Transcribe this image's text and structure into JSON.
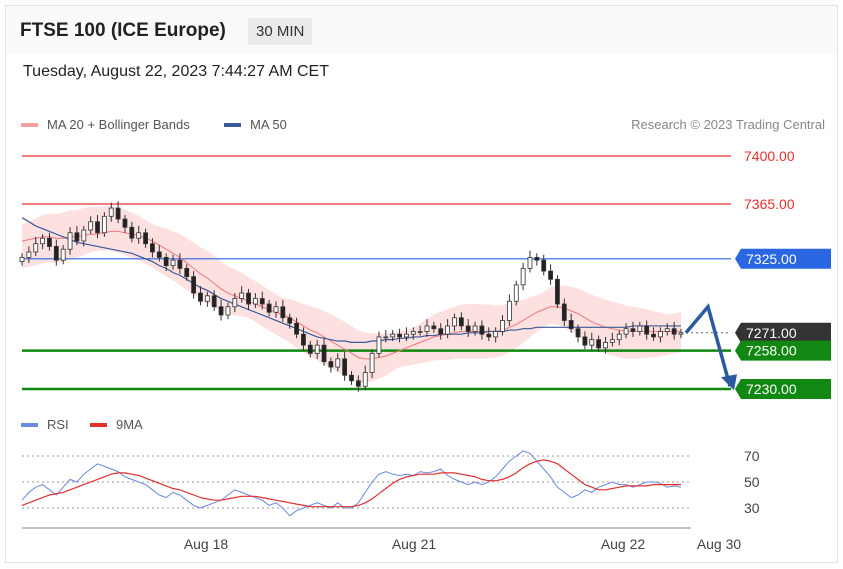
{
  "header": {
    "title": "FTSE 100 (ICE Europe)",
    "timeframe": "30 MIN"
  },
  "datetime": "Tuesday, August 22, 2023 7:44:27 AM CET",
  "legend": {
    "ma20": "MA 20 + Bollinger Bands",
    "ma50": "MA 50",
    "credit": "Research © 2023 Trading Central"
  },
  "rsi_legend": {
    "rsi": "RSI",
    "ma9": "9MA"
  },
  "colors": {
    "resistance": "#e8302a",
    "pivot": "#2a66e0",
    "support": "#118811",
    "price": "#333333",
    "ma20": "#f07878",
    "ma50": "#3a5a9a",
    "band": "#fde0e0",
    "rsi": "#6a8ae0",
    "rsi_ma": "#e03030",
    "arrow": "#2c5aa0"
  },
  "chart_data": [
    {
      "type": "candlestick",
      "title": "FTSE 100 (ICE Europe)",
      "timeframe": "30 MIN",
      "ylim": [
        7210,
        7420
      ],
      "x_ticks": [
        "Aug 18",
        "Aug 21",
        "Aug 22",
        "Aug 30"
      ],
      "levels": [
        {
          "value": 7400.0,
          "label": "7400.00",
          "kind": "resistance"
        },
        {
          "value": 7365.0,
          "label": "7365.00",
          "kind": "resistance"
        },
        {
          "value": 7325.0,
          "label": "7325.00",
          "kind": "pivot"
        },
        {
          "value": 7271.0,
          "label": "7271.00",
          "kind": "last"
        },
        {
          "value": 7258.0,
          "label": "7258.00",
          "kind": "support"
        },
        {
          "value": 7230.0,
          "label": "7230.00",
          "kind": "support"
        }
      ],
      "close": [
        7326,
        7330,
        7336,
        7340,
        7334,
        7324,
        7332,
        7344,
        7338,
        7346,
        7352,
        7344,
        7356,
        7362,
        7354,
        7348,
        7340,
        7344,
        7336,
        7330,
        7326,
        7320,
        7324,
        7318,
        7312,
        7300,
        7294,
        7298,
        7290,
        7284,
        7290,
        7296,
        7300,
        7292,
        7296,
        7292,
        7286,
        7290,
        7282,
        7278,
        7270,
        7262,
        7256,
        7262,
        7250,
        7246,
        7252,
        7240,
        7236,
        7232,
        7242,
        7256,
        7268,
        7268,
        7270,
        7268,
        7270,
        7272,
        7272,
        7276,
        7274,
        7270,
        7276,
        7282,
        7276,
        7272,
        7276,
        7270,
        7268,
        7272,
        7280,
        7294,
        7306,
        7318,
        7326,
        7324,
        7316,
        7310,
        7292,
        7280,
        7274,
        7268,
        7262,
        7266,
        7260,
        7264,
        7266,
        7270,
        7274,
        7272,
        7276,
        7270,
        7268,
        7272,
        7274,
        7270,
        7271
      ],
      "ma20": [
        7338,
        7339,
        7340,
        7341,
        7341,
        7340,
        7340,
        7341,
        7341,
        7342,
        7343,
        7343,
        7344,
        7345,
        7345,
        7344,
        7343,
        7342,
        7340,
        7338,
        7335,
        7332,
        7329,
        7326,
        7322,
        7318,
        7314,
        7311,
        7307,
        7303,
        7300,
        7298,
        7296,
        7294,
        7292,
        7290,
        7288,
        7286,
        7284,
        7282,
        7279,
        7276,
        7273,
        7271,
        7268,
        7265,
        7262,
        7259,
        7256,
        7253,
        7252,
        7252,
        7253,
        7254,
        7256,
        7258,
        7260,
        7262,
        7264,
        7266,
        7268,
        7269,
        7270,
        7271,
        7272,
        7272,
        7272,
        7272,
        7272,
        7272,
        7273,
        7275,
        7277,
        7280,
        7283,
        7286,
        7288,
        7290,
        7290,
        7289,
        7287,
        7285,
        7282,
        7279,
        7277,
        7275,
        7274,
        7273,
        7272,
        7272,
        7272,
        7272,
        7272,
        7272,
        7272,
        7272,
        7272
      ],
      "ma50": [
        7355,
        7352,
        7349,
        7347,
        7345,
        7343,
        7341,
        7339,
        7337,
        7336,
        7335,
        7334,
        7333,
        7332,
        7331,
        7330,
        7329,
        7327,
        7325,
        7323,
        7320,
        7318,
        7315,
        7313,
        7310,
        7307,
        7304,
        7302,
        7299,
        7296,
        7294,
        7292,
        7290,
        7288,
        7286,
        7284,
        7282,
        7280,
        7278,
        7276,
        7274,
        7272,
        7270,
        7268,
        7267,
        7266,
        7265,
        7265,
        7264,
        7264,
        7264,
        7265,
        7265,
        7266,
        7266,
        7267,
        7267,
        7268,
        7268,
        7269,
        7269,
        7270,
        7270,
        7270,
        7270,
        7271,
        7271,
        7271,
        7272,
        7272,
        7272,
        7273,
        7273,
        7274,
        7274,
        7275,
        7275,
        7275,
        7275,
        7275,
        7275,
        7275,
        7275,
        7275,
        7275,
        7275,
        7275,
        7275,
        7275,
        7276,
        7276,
        7276,
        7276,
        7276,
        7276,
        7276,
        7276
      ],
      "projection": [
        {
          "step": 0,
          "value": 7271
        },
        {
          "step": 1,
          "value": 7290
        },
        {
          "step": 2,
          "value": 7232
        }
      ]
    },
    {
      "type": "line",
      "title": "RSI",
      "ylim": [
        20,
        80
      ],
      "y_ticks": [
        70,
        50,
        30
      ],
      "series": [
        {
          "name": "RSI",
          "values": [
            36,
            42,
            46,
            48,
            44,
            40,
            46,
            52,
            50,
            56,
            60,
            64,
            62,
            60,
            58,
            54,
            52,
            50,
            48,
            44,
            40,
            38,
            42,
            40,
            36,
            32,
            30,
            32,
            34,
            36,
            40,
            44,
            42,
            40,
            38,
            36,
            32,
            34,
            30,
            24,
            28,
            30,
            32,
            34,
            32,
            30,
            34,
            30,
            30,
            34,
            42,
            50,
            56,
            58,
            56,
            55,
            56,
            55,
            58,
            57,
            58,
            60,
            55,
            52,
            50,
            48,
            50,
            48,
            50,
            54,
            60,
            66,
            70,
            74,
            72,
            66,
            60,
            54,
            46,
            42,
            38,
            40,
            44,
            42,
            46,
            48,
            50,
            48,
            48,
            46,
            48,
            50,
            50,
            49,
            46,
            47,
            46
          ]
        },
        {
          "name": "9MA",
          "values": [
            32,
            34,
            36,
            38,
            40,
            41,
            42,
            44,
            46,
            48,
            50,
            52,
            54,
            56,
            57,
            57,
            56,
            55,
            53,
            51,
            49,
            47,
            45,
            44,
            42,
            40,
            38,
            37,
            36,
            36,
            37,
            38,
            39,
            39,
            39,
            38,
            37,
            36,
            35,
            34,
            33,
            32,
            31,
            31,
            31,
            31,
            31,
            31,
            31,
            32,
            34,
            37,
            41,
            45,
            49,
            52,
            54,
            55,
            56,
            56,
            56,
            57,
            57,
            57,
            56,
            55,
            54,
            52,
            51,
            51,
            52,
            54,
            57,
            61,
            64,
            66,
            67,
            66,
            64,
            60,
            56,
            52,
            48,
            46,
            44,
            44,
            45,
            46,
            47,
            47,
            47,
            47,
            48,
            48,
            48,
            48,
            48
          ]
        }
      ]
    }
  ]
}
